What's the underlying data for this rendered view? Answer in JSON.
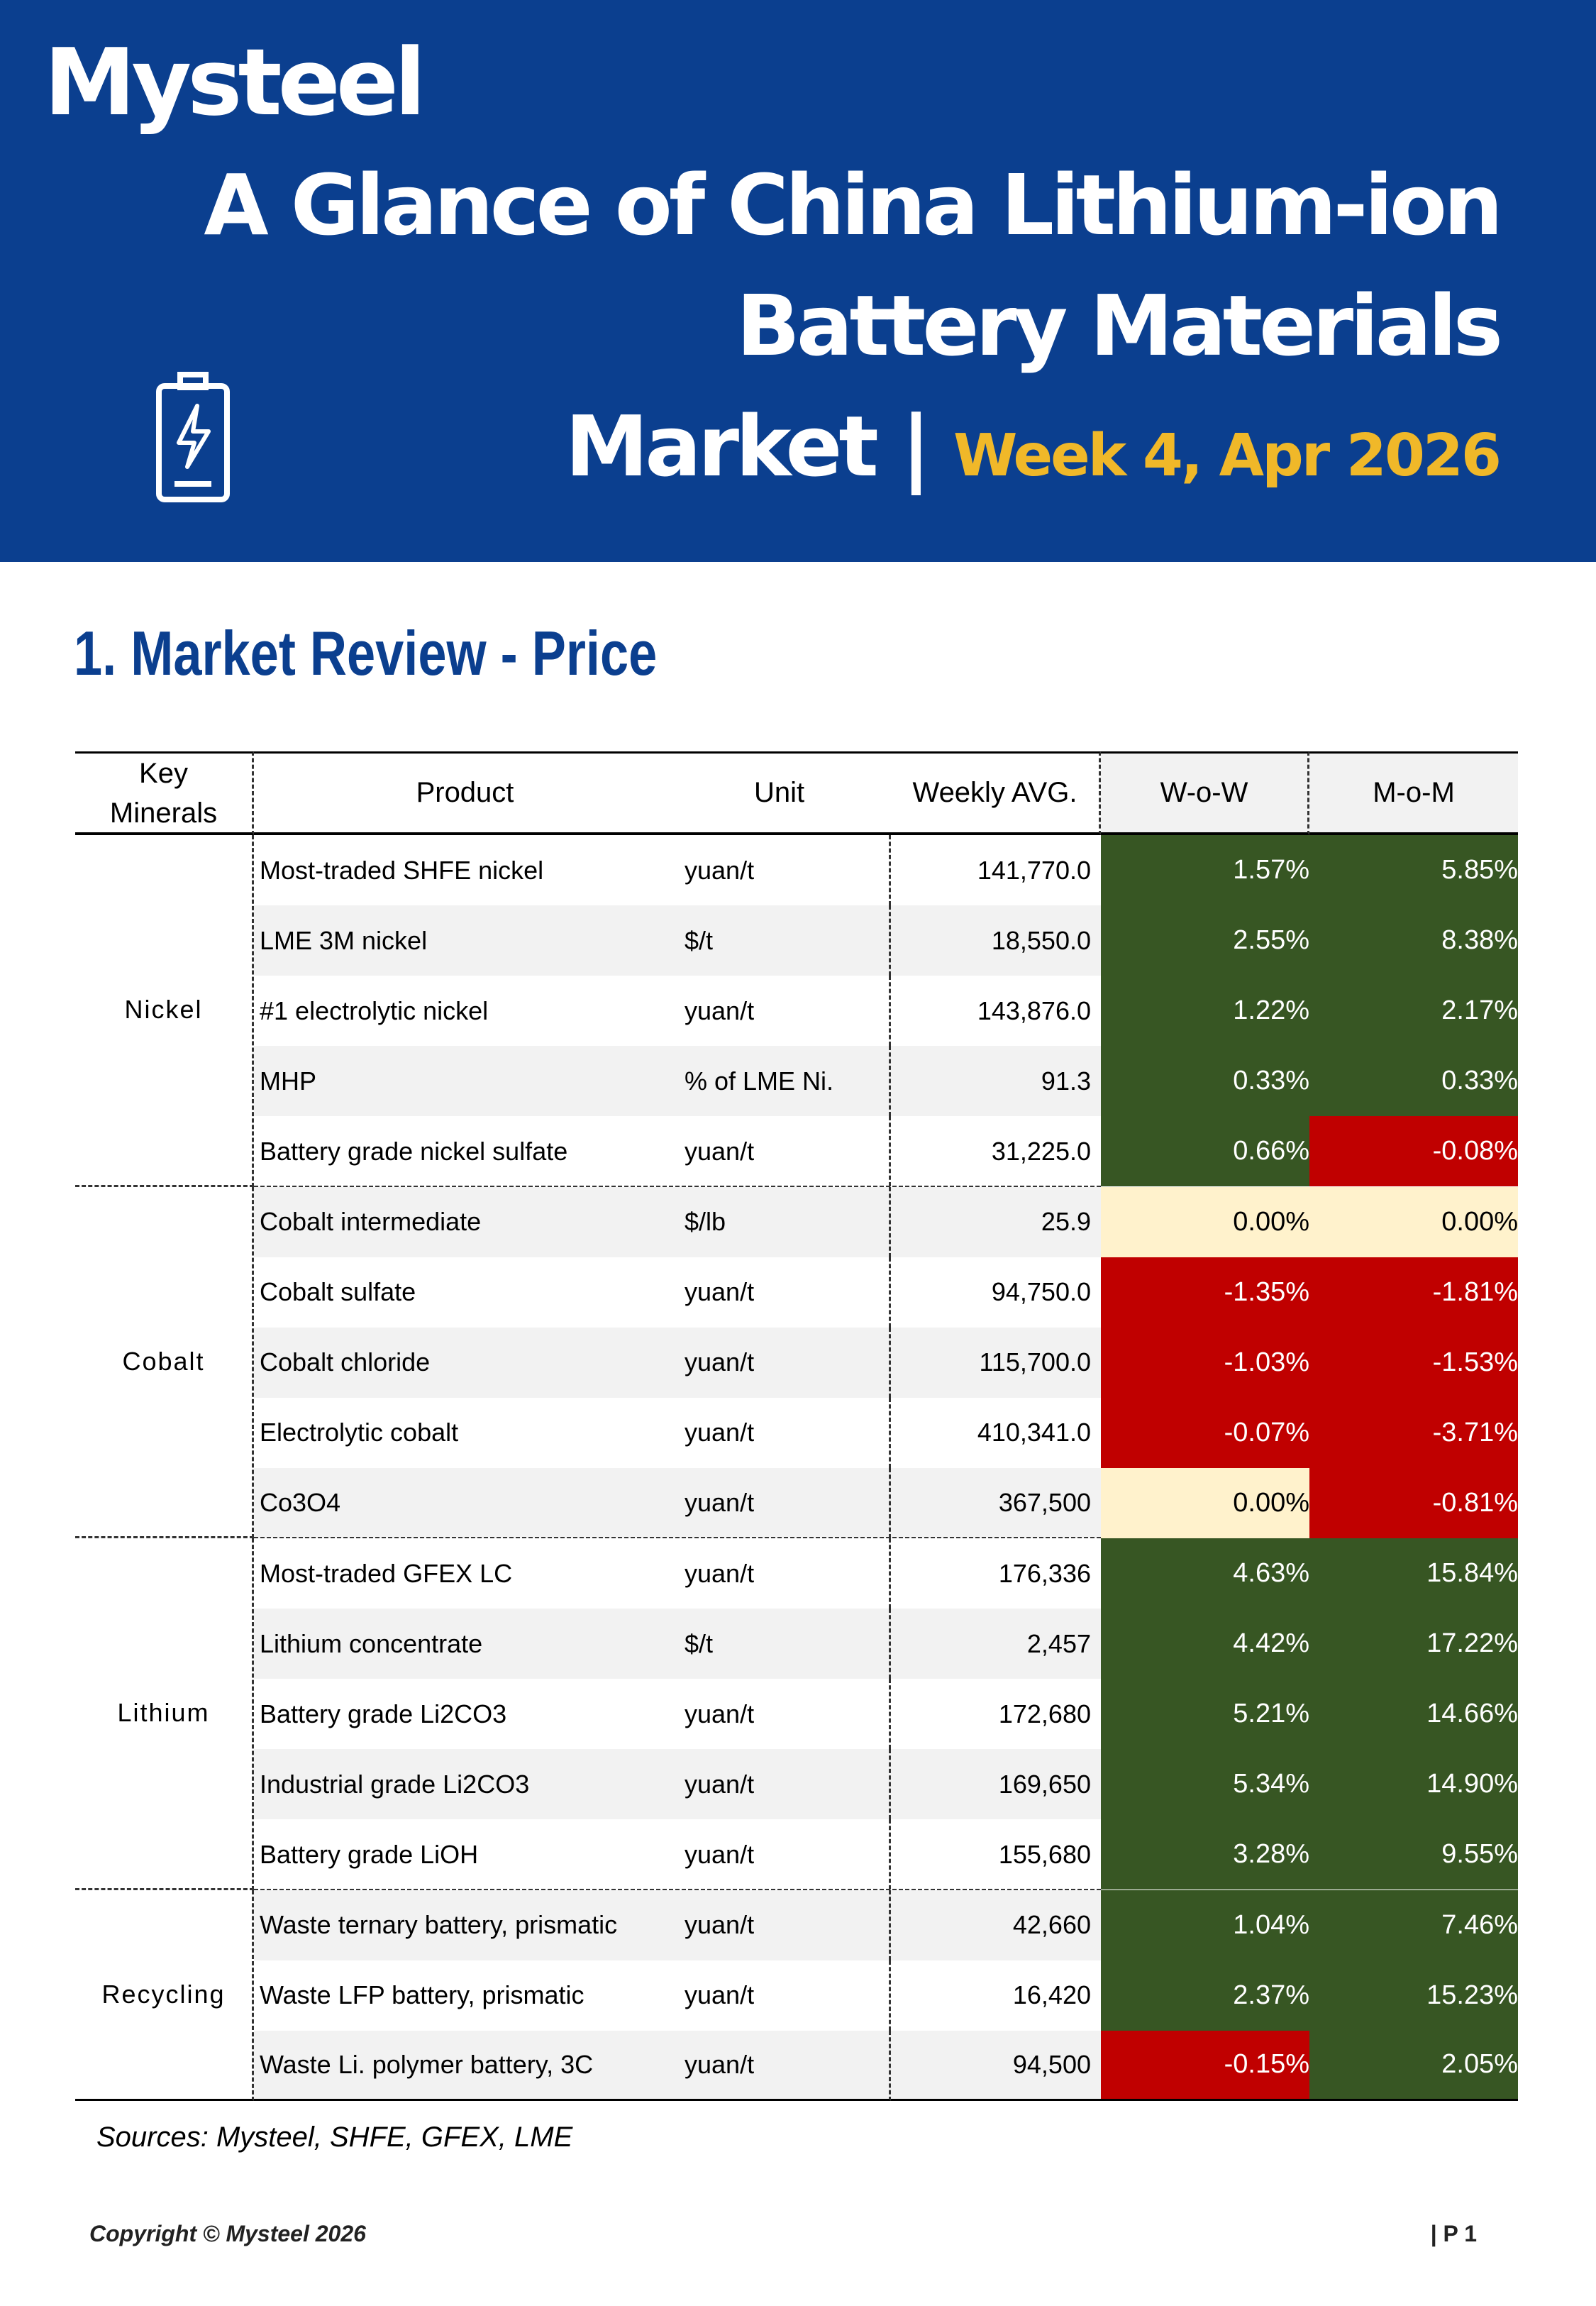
{
  "header": {
    "logo": "Mysteel",
    "title_lines": [
      "A Glance of China Lithium-ion",
      "Battery Materials",
      "Market |"
    ],
    "week": "Week 4, Apr 2026"
  },
  "section": {
    "title": "1. Market Review - Price"
  },
  "table": {
    "columns": [
      "Key Minerals",
      "Product",
      "Unit",
      "Weekly AVG.",
      "W-o-W",
      "M-o-M"
    ],
    "groups": [
      {
        "name": "Nickel",
        "rows": [
          [
            "Most-traded SHFE nickel",
            "yuan/t",
            "141,770.0",
            "1.57%",
            "5.85%"
          ],
          [
            "LME 3M nickel",
            "$/t",
            "18,550.0",
            "2.55%",
            "8.38%"
          ],
          [
            "#1 electrolytic nickel",
            "yuan/t",
            "143,876.0",
            "1.22%",
            "2.17%"
          ],
          [
            "MHP",
            "% of LME Ni.",
            "91.3",
            "0.33%",
            "0.33%"
          ],
          [
            "Battery grade nickel sulfate",
            "yuan/t",
            "31,225.0",
            "0.66%",
            "-0.08%"
          ]
        ]
      },
      {
        "name": "Cobalt",
        "rows": [
          [
            "Cobalt intermediate",
            "$/lb",
            "25.9",
            "0.00%",
            "0.00%"
          ],
          [
            "Cobalt sulfate",
            "yuan/t",
            "94,750.0",
            "-1.35%",
            "-1.81%"
          ],
          [
            "Cobalt chloride",
            "yuan/t",
            "115,700.0",
            "-1.03%",
            "-1.53%"
          ],
          [
            "Electrolytic cobalt",
            "yuan/t",
            "410,341.0",
            "-0.07%",
            "-3.71%"
          ],
          [
            "Co3O4",
            "yuan/t",
            "367,500",
            "0.00%",
            "-0.81%"
          ]
        ]
      },
      {
        "name": "Lithium",
        "rows": [
          [
            "Most-traded GFEX LC",
            "yuan/t",
            "176,336",
            "4.63%",
            "15.84%"
          ],
          [
            "Lithium concentrate",
            "$/t",
            "2,457",
            "4.42%",
            "17.22%"
          ],
          [
            "Battery grade Li2CO3",
            "yuan/t",
            "172,680",
            "5.21%",
            "14.66%"
          ],
          [
            "Industrial grade Li2CO3",
            "yuan/t",
            "169,650",
            "5.34%",
            "14.90%"
          ],
          [
            "Battery grade LiOH",
            "yuan/t",
            "155,680",
            "3.28%",
            "9.55%"
          ]
        ]
      },
      {
        "name": "Recycling",
        "rows": [
          [
            "Waste ternary battery, prismatic",
            "yuan/t",
            "42,660",
            "1.04%",
            "7.46%"
          ],
          [
            "Waste LFP battery, prismatic",
            "yuan/t",
            "16,420",
            "2.37%",
            "15.23%"
          ],
          [
            "Waste Li. polymer battery, 3C",
            "yuan/t",
            "94,500",
            "-0.15%",
            "2.05%"
          ]
        ]
      }
    ]
  },
  "sources": "Sources: Mysteel, SHFE, GFEX, LME",
  "footer": {
    "copyright": "Copyright © Mysteel 2026",
    "page": "| P 1"
  }
}
